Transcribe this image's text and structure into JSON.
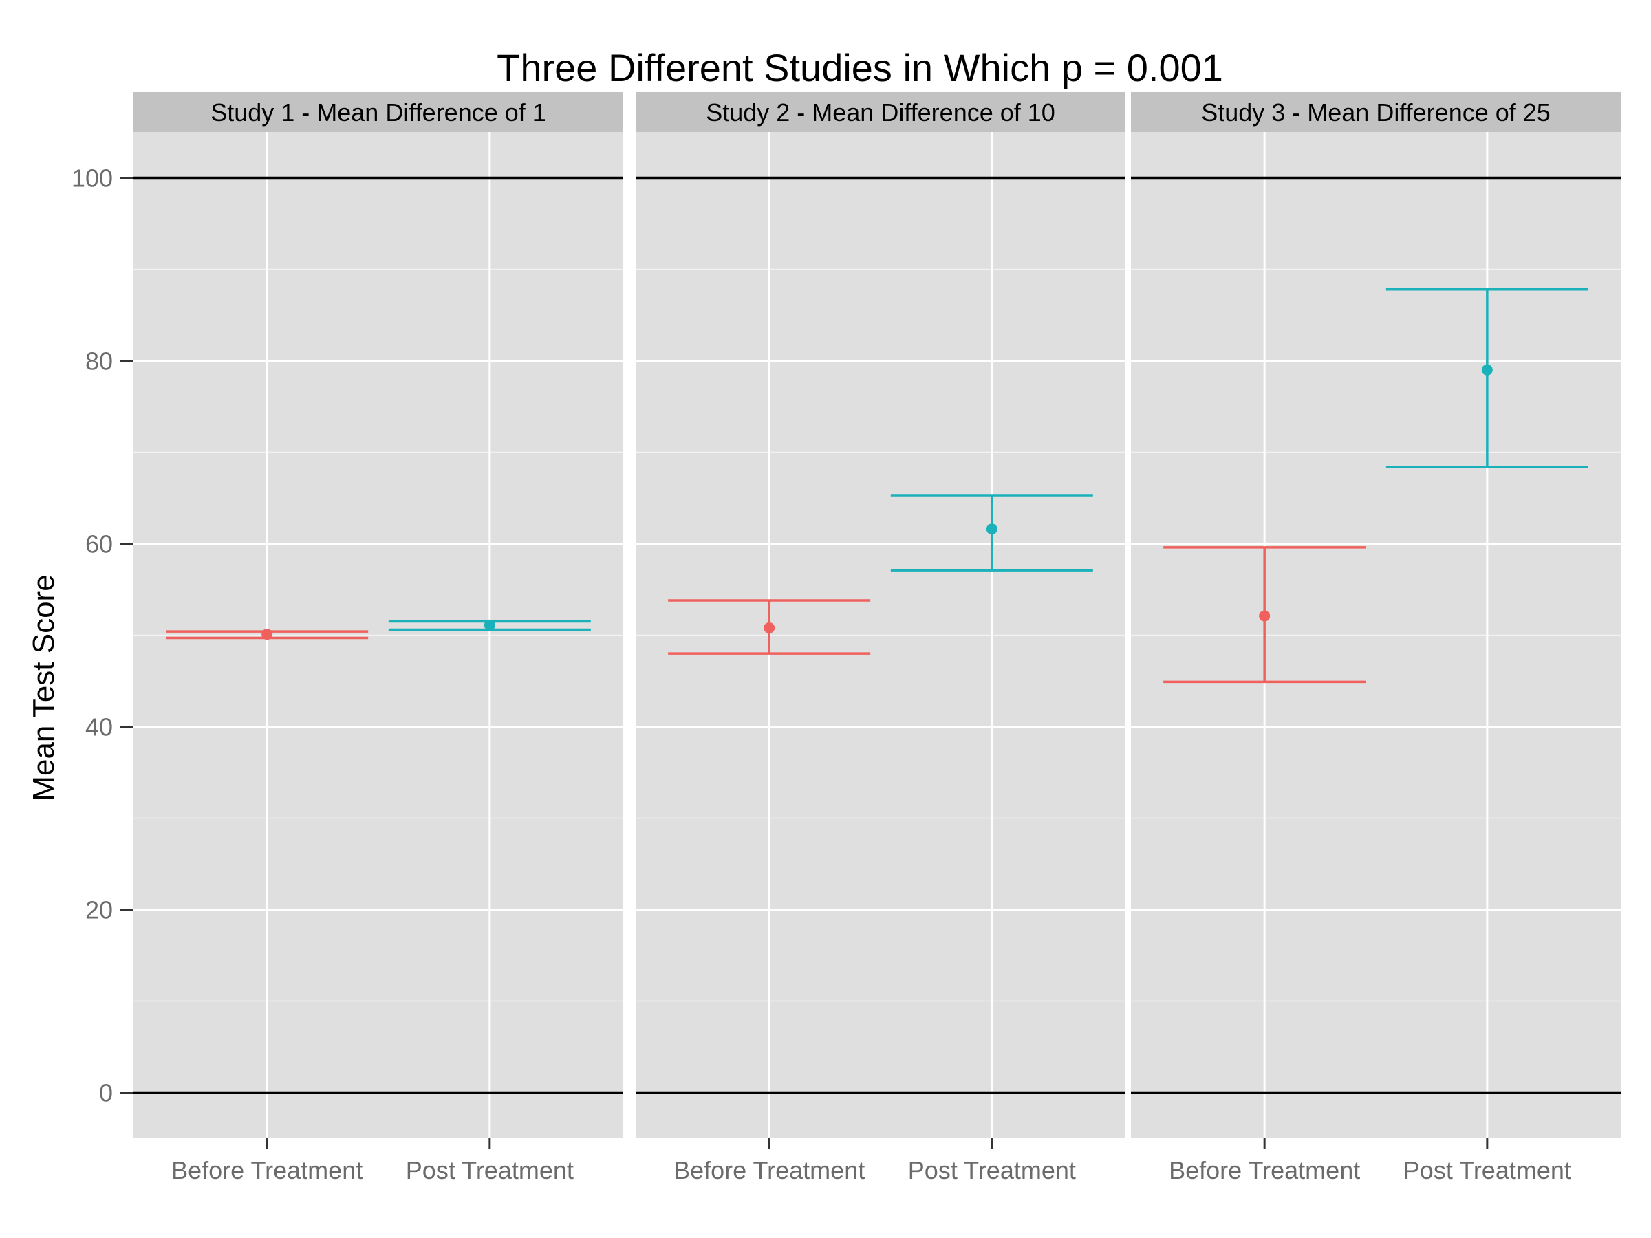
{
  "chart_data": {
    "type": "errorbar",
    "title": "Three Different Studies in Which p = 0.001",
    "ylabel": "Mean Test Score",
    "xlabel": "",
    "ylim": [
      -5,
      105
    ],
    "yticks": [
      0,
      20,
      40,
      60,
      80,
      100
    ],
    "reference_lines": [
      0,
      100
    ],
    "grid": true,
    "categories": [
      "Before Treatment",
      "Post Treatment"
    ],
    "colors": {
      "Before Treatment": "#F0605C",
      "Post Treatment": "#1AB1BA",
      "panel_bg": "#DFDFDF",
      "strip_bg": "#C2C2C2"
    },
    "panels": [
      {
        "label": "Study 1 - Mean Difference of 1",
        "points": [
          {
            "category": "Before Treatment",
            "mean": 50.1,
            "lower": 49.7,
            "upper": 50.4
          },
          {
            "category": "Post Treatment",
            "mean": 51.1,
            "lower": 50.6,
            "upper": 51.5
          }
        ]
      },
      {
        "label": "Study 2 - Mean Difference of 10",
        "points": [
          {
            "category": "Before Treatment",
            "mean": 50.8,
            "lower": 48.0,
            "upper": 53.8
          },
          {
            "category": "Post Treatment",
            "mean": 61.6,
            "lower": 57.1,
            "upper": 65.3
          }
        ]
      },
      {
        "label": "Study 3 - Mean Difference of 25",
        "points": [
          {
            "category": "Before Treatment",
            "mean": 52.1,
            "lower": 44.9,
            "upper": 59.6
          },
          {
            "category": "Post Treatment",
            "mean": 79.0,
            "lower": 68.4,
            "upper": 87.8
          }
        ]
      }
    ]
  }
}
